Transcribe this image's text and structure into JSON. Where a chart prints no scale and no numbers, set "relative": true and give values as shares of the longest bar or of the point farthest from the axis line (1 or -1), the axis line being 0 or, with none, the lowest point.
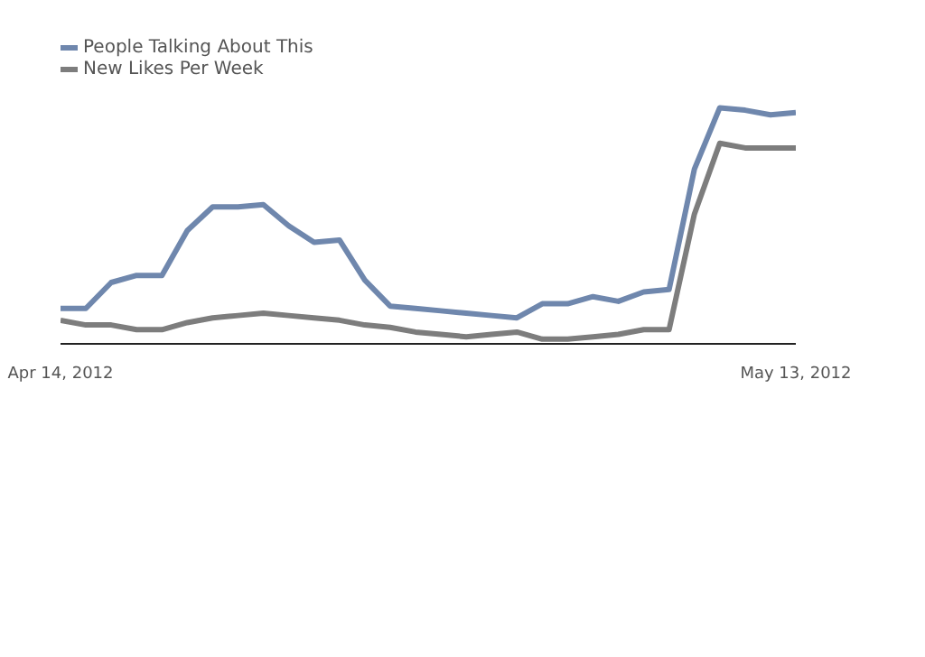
{
  "chart_data": {
    "type": "line",
    "relative": true,
    "x": [
      "2012-04-14",
      "2012-04-15",
      "2012-04-16",
      "2012-04-17",
      "2012-04-18",
      "2012-04-19",
      "2012-04-20",
      "2012-04-21",
      "2012-04-22",
      "2012-04-23",
      "2012-04-24",
      "2012-04-25",
      "2012-04-26",
      "2012-04-27",
      "2012-04-28",
      "2012-04-29",
      "2012-04-30",
      "2012-05-01",
      "2012-05-02",
      "2012-05-03",
      "2012-05-04",
      "2012-05-05",
      "2012-05-06",
      "2012-05-07",
      "2012-05-08",
      "2012-05-09",
      "2012-05-10",
      "2012-05-11",
      "2012-05-12",
      "2012-05-13"
    ],
    "xlim": [
      "2012-04-14",
      "2012-05-13"
    ],
    "xticks": [
      {
        "value": "2012-04-14",
        "label": "Apr 14, 2012"
      },
      {
        "value": "2012-05-13",
        "label": "May 13, 2012"
      }
    ],
    "series": [
      {
        "name": "People Talking About This",
        "color": "#6f87ad",
        "values": [
          0.15,
          0.15,
          0.26,
          0.29,
          0.29,
          0.48,
          0.58,
          0.58,
          0.59,
          0.5,
          0.43,
          0.44,
          0.27,
          0.16,
          0.15,
          0.14,
          0.13,
          0.12,
          0.11,
          0.17,
          0.17,
          0.2,
          0.18,
          0.22,
          0.23,
          0.74,
          1,
          0.99,
          0.97,
          0.98
        ]
      },
      {
        "name": "New Likes Per Week",
        "color": "#7d7d7d",
        "values": [
          0.1,
          0.08,
          0.08,
          0.06,
          0.06,
          0.09,
          0.11,
          0.12,
          0.13,
          0.12,
          0.11,
          0.1,
          0.08,
          0.07,
          0.05,
          0.04,
          0.03,
          0.04,
          0.05,
          0.02,
          0.02,
          0.03,
          0.04,
          0.06,
          0.06,
          0.55,
          0.85,
          0.83,
          0.83,
          0.83
        ]
      }
    ],
    "legend": "top left",
    "grid": false,
    "marker": "none",
    "line_style": "solid"
  }
}
